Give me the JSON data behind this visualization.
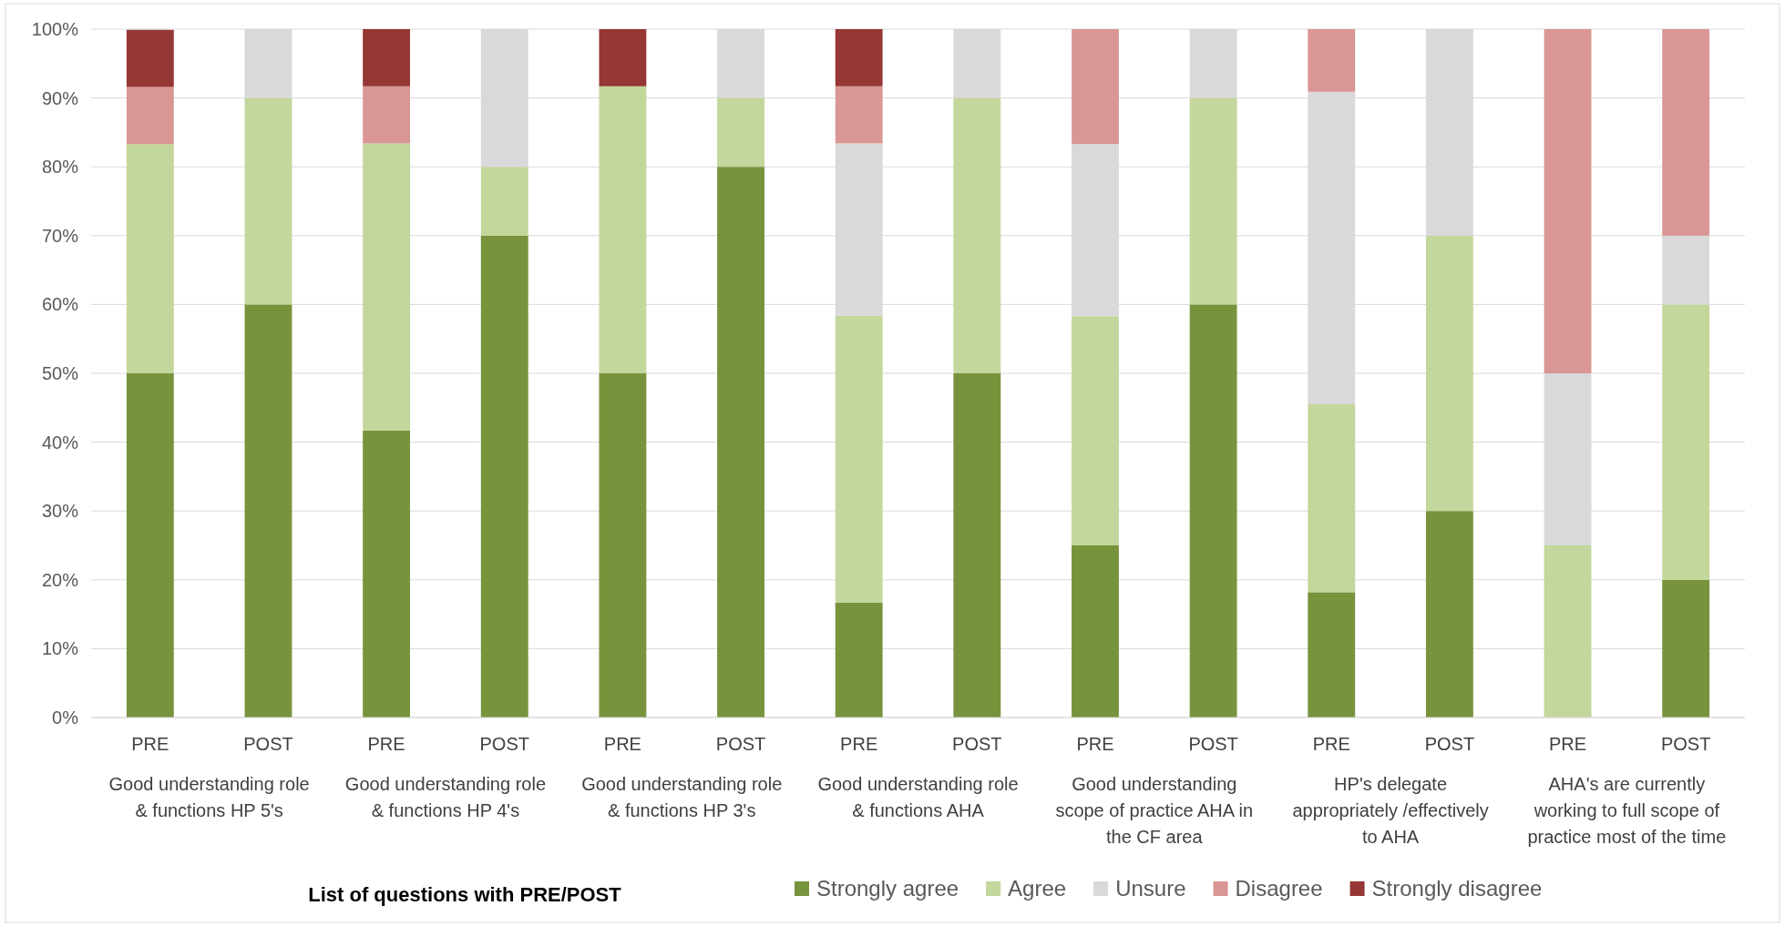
{
  "chart_data": {
    "type": "bar",
    "stacked": true,
    "categories": [
      "PRE",
      "POST",
      "PRE",
      "POST",
      "PRE",
      "POST",
      "PRE",
      "POST",
      "PRE",
      "POST",
      "PRE",
      "POST",
      "PRE",
      "POST"
    ],
    "annotations": [
      "Good understanding role & functions HP 5's",
      "Good understanding role & functions HP 4's",
      "Good understanding role & functions HP 3's",
      "Good understanding role & functions AHA",
      "Good understanding scope of practice AHA in the CF area",
      "HP's delegate appropriately /effectively to AHA",
      "AHA's are currently working to full scope of practice most of the time",
      "List of questions with PRE/POST"
    ],
    "series": [
      {
        "name": "Strongly agree",
        "color": "#77933c",
        "values": [
          50,
          60,
          41.7,
          70,
          50,
          80,
          16.7,
          50,
          25,
          60,
          18.2,
          30,
          0,
          20
        ]
      },
      {
        "name": "Agree",
        "color": "#c3d69b",
        "values": [
          33.3,
          30,
          41.7,
          10,
          41.7,
          10,
          41.7,
          40,
          33.3,
          30,
          27.3,
          40,
          25,
          40
        ]
      },
      {
        "name": "Unsure",
        "color": "#d9d9d9",
        "values": [
          0,
          10,
          0,
          20,
          0,
          10,
          25,
          10,
          25,
          10,
          45.4,
          30,
          25,
          10
        ]
      },
      {
        "name": "Disagree",
        "color": "#d99694",
        "values": [
          8.3,
          0,
          8.3,
          0,
          0,
          0,
          8.3,
          0,
          16.7,
          0,
          9.1,
          0,
          50,
          30
        ]
      },
      {
        "name": "Strongly disagree",
        "color": "#953735",
        "values": [
          8.3,
          0,
          8.3,
          0,
          8.3,
          0,
          8.3,
          0,
          0,
          0,
          0,
          0,
          0,
          0
        ]
      }
    ],
    "ylim": [
      0,
      100
    ],
    "yticks": [
      {
        "value": 0,
        "label": "0%"
      },
      {
        "value": 10,
        "label": "10%"
      },
      {
        "value": 20,
        "label": "20%"
      },
      {
        "value": 30,
        "label": "30%"
      },
      {
        "value": 40,
        "label": "40%"
      },
      {
        "value": 50,
        "label": "50%"
      },
      {
        "value": 60,
        "label": "60%"
      },
      {
        "value": 70,
        "label": "70%"
      },
      {
        "value": 80,
        "label": "80%"
      },
      {
        "value": 90,
        "label": "90%"
      },
      {
        "value": 100,
        "label": "100%"
      }
    ],
    "grid": "y",
    "legend": "bottom"
  }
}
